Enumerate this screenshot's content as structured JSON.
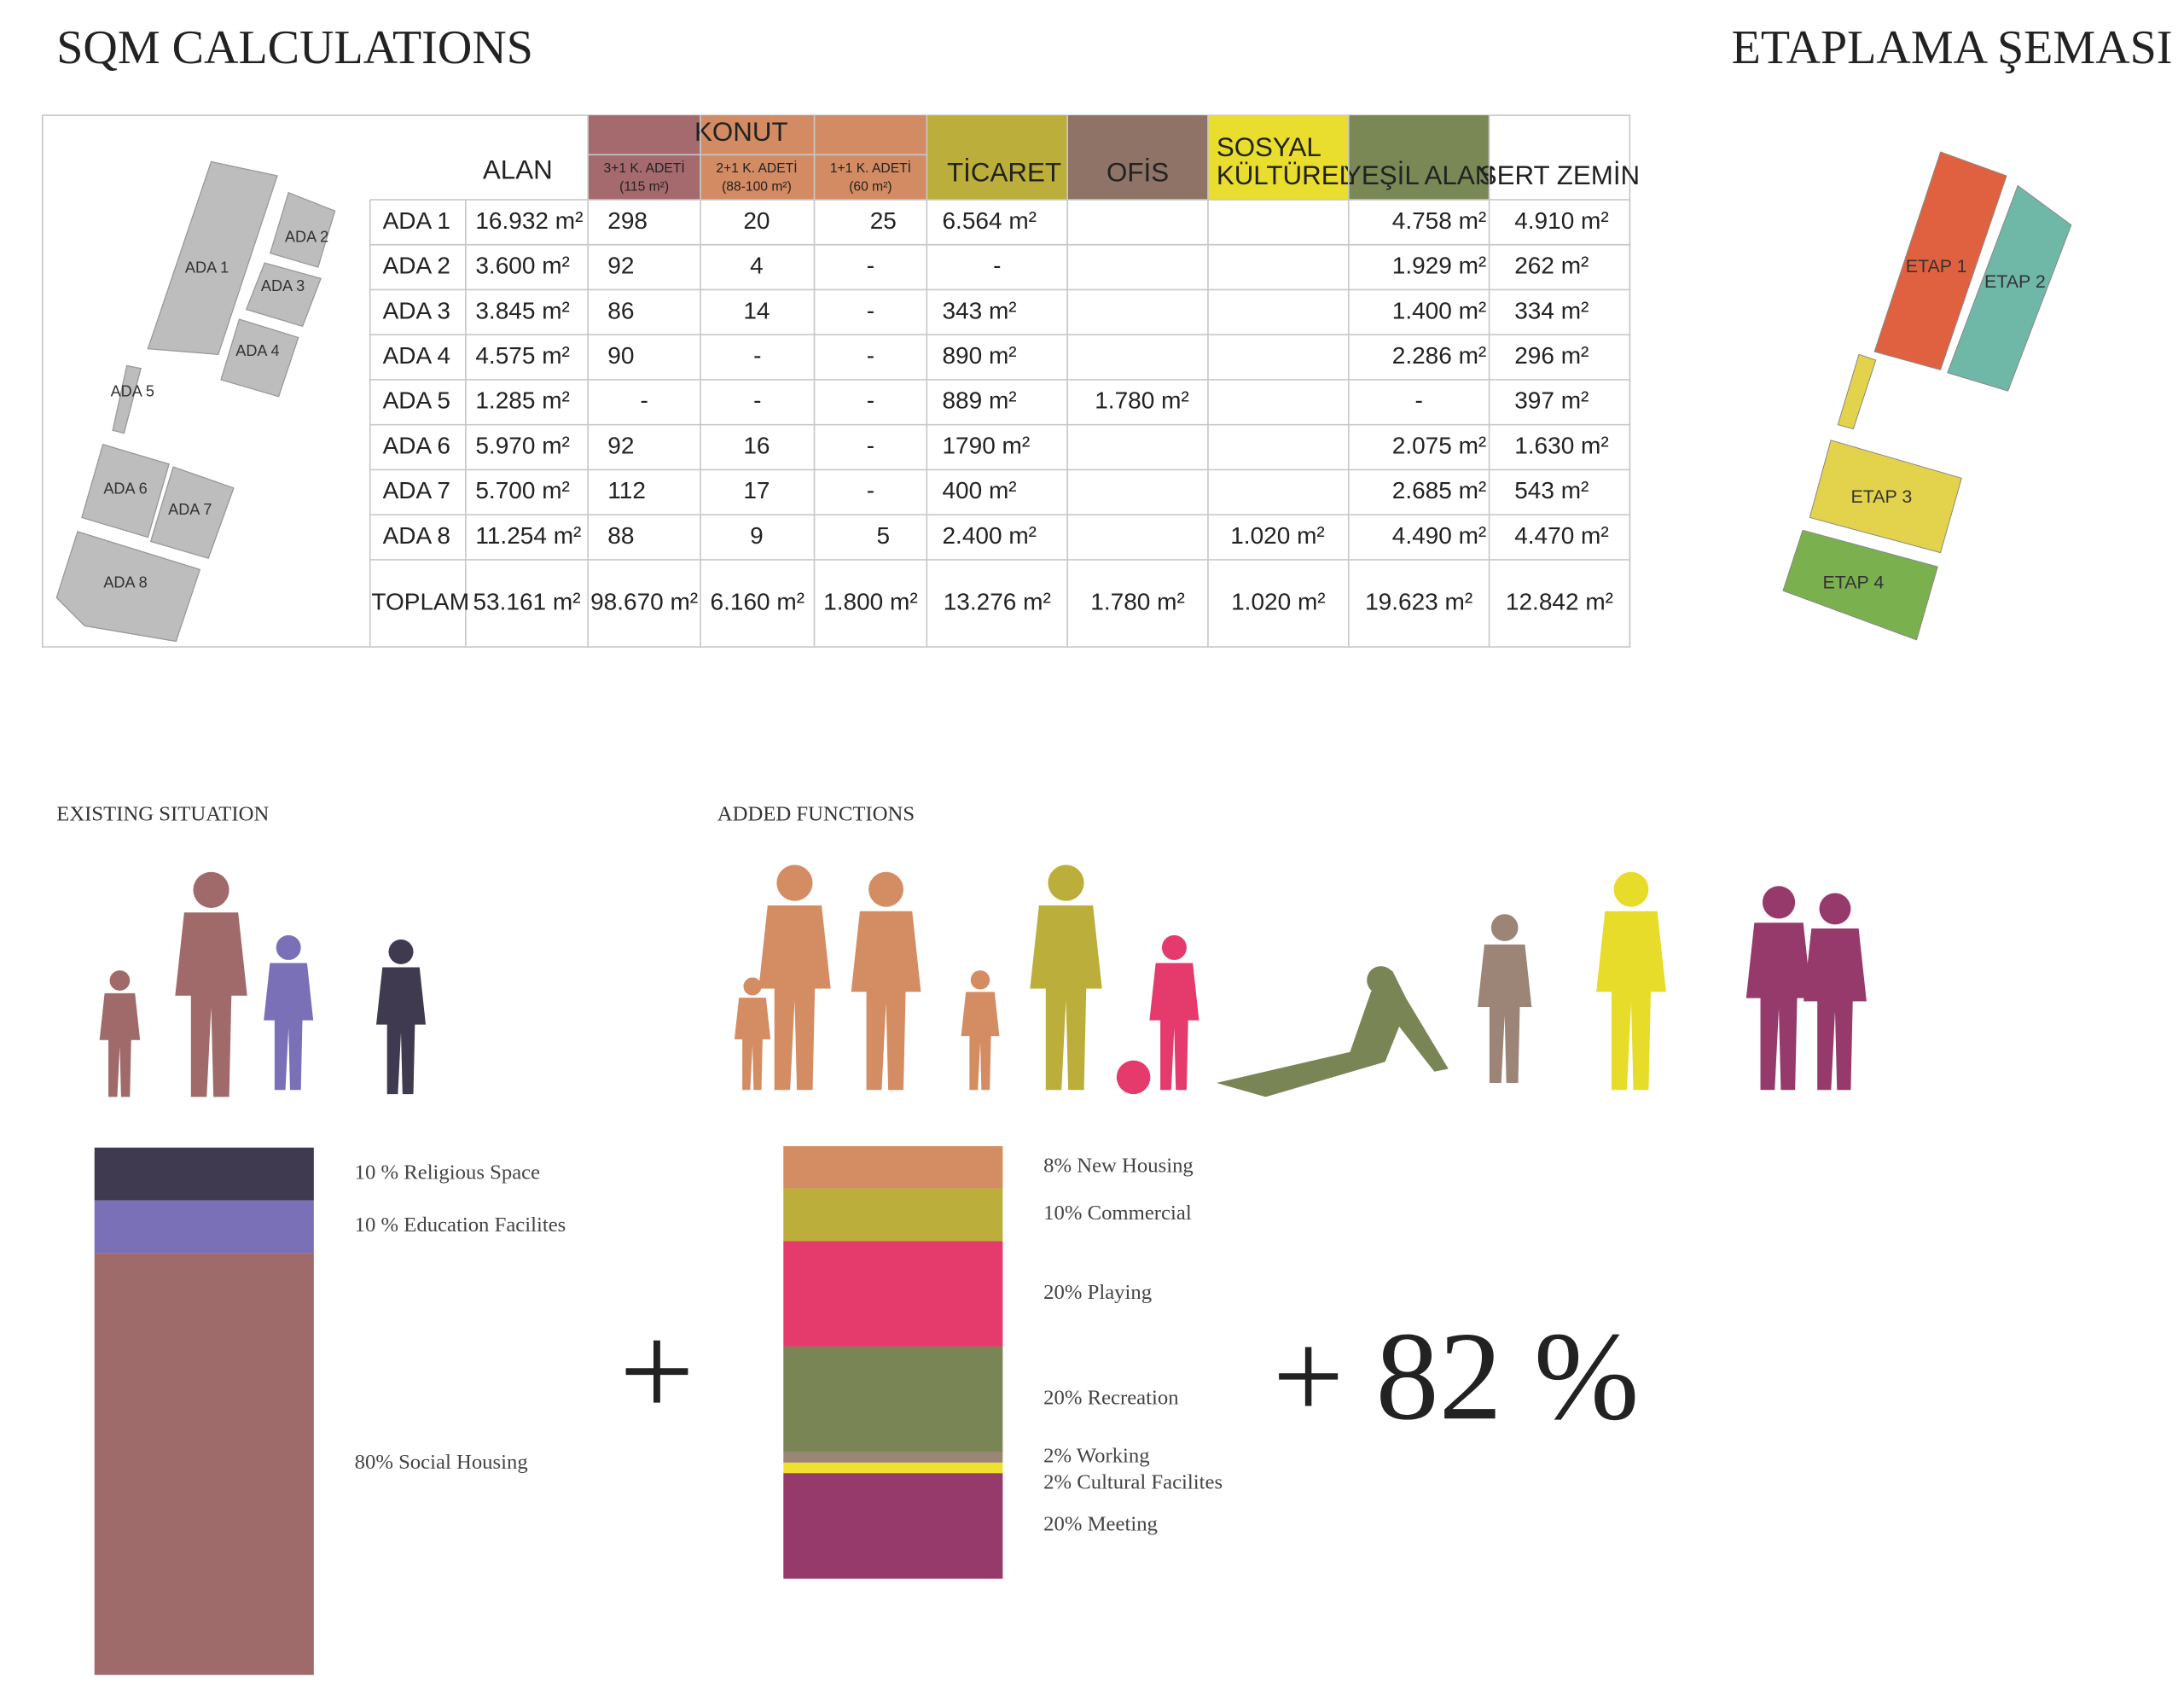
{
  "sqm": {
    "title": "SQM CALCULATIONS",
    "headers": {
      "alan": "ALAN",
      "konut": "KONUT",
      "konut_sub": [
        [
          "3+1 K. ADETİ",
          "(115 m²)"
        ],
        [
          "2+1 K. ADETİ",
          "(88-100 m²)"
        ],
        [
          "1+1 K. ADETİ",
          "(60 m²)"
        ]
      ],
      "ticaret": "TİCARET",
      "ofis": "OFİS",
      "sosyal": [
        "SOSYAL",
        "KÜLTÜREL"
      ],
      "yesil": "YEŞİL ALAN",
      "sert": "SERT ZEMİN"
    },
    "rows": [
      [
        "ADA 1",
        "16.932 m²",
        "298",
        "20",
        "25",
        "6.564 m²",
        null,
        null,
        "4.758 m²",
        "4.910 m²"
      ],
      [
        "ADA 2",
        "3.600 m²",
        "92",
        "4",
        "-",
        "-",
        null,
        null,
        "1.929 m²",
        "262 m²"
      ],
      [
        "ADA 3",
        "3.845 m²",
        "86",
        "14",
        "-",
        "343 m²",
        null,
        null,
        "1.400 m²",
        "334 m²"
      ],
      [
        "ADA 4",
        "4.575 m²",
        "90",
        "-",
        "-",
        "890 m²",
        null,
        null,
        "2.286 m²",
        "296 m²"
      ],
      [
        "ADA 5",
        "1.285 m²",
        "-",
        "-",
        "-",
        "889 m²",
        "1.780 m²",
        null,
        "-",
        "397 m²"
      ],
      [
        "ADA 6",
        "5.970 m²",
        "92",
        "16",
        "-",
        "1790 m²",
        null,
        null,
        "2.075 m²",
        "1.630 m²"
      ],
      [
        "ADA 7",
        "5.700 m²",
        "112",
        "17",
        "-",
        "400 m²",
        null,
        null,
        "2.685 m²",
        "543 m²"
      ],
      [
        "ADA 8",
        "11.254 m²",
        "88",
        "9",
        "5",
        "2.400 m²",
        null,
        "1.020 m²",
        "4.490 m²",
        "4.470 m²"
      ]
    ],
    "total": [
      "TOPLAM",
      "53.161 m²",
      "98.670 m²",
      "6.160 m²",
      "1.800 m²",
      "13.276 m²",
      "1.780 m²",
      "1.020 m²",
      "19.623 m²",
      "12.842 m²"
    ]
  },
  "site_plan": {
    "labels": [
      "ADA 1",
      "ADA 2",
      "ADA 3",
      "ADA 4",
      "ADA 5",
      "ADA 6",
      "ADA 7",
      "ADA 8"
    ]
  },
  "etaplama": {
    "title": "ETAPLAMA  ŞEMASI",
    "labels": [
      "ETAP 1",
      "ETAP 2",
      "ETAP 3",
      "ETAP 4"
    ]
  },
  "existing": {
    "title": "EXISTING SITUATION",
    "segments": [
      {
        "value": 10,
        "label": "10 % Religious Space",
        "color": "#3f3a4f"
      },
      {
        "value": 10,
        "label": "10 % Education Facilites",
        "color": "#7a70b8"
      },
      {
        "value": 80,
        "label": "80% Social Housing",
        "color": "#9e6b6a"
      }
    ]
  },
  "added": {
    "title": "ADDED FUNCTIONS",
    "segments": [
      {
        "value": 8,
        "label": "8% New Housing",
        "color": "#d48c62"
      },
      {
        "value": 10,
        "label": "10% Commercial",
        "color": "#bcae3a"
      },
      {
        "value": 20,
        "label": "20% Playing",
        "color": "#e43a6c"
      },
      {
        "value": 20,
        "label": "20% Recreation",
        "color": "#7a8556"
      },
      {
        "value": 2,
        "label": "2% Working",
        "color": "#9c8576"
      },
      {
        "value": 2,
        "label": "2% Cultural Facilites",
        "color": "#f0e030"
      },
      {
        "value": 20,
        "label": "20% Meeting",
        "color": "#963a6c"
      }
    ]
  },
  "plus": "+",
  "result": "+ 82 %"
}
